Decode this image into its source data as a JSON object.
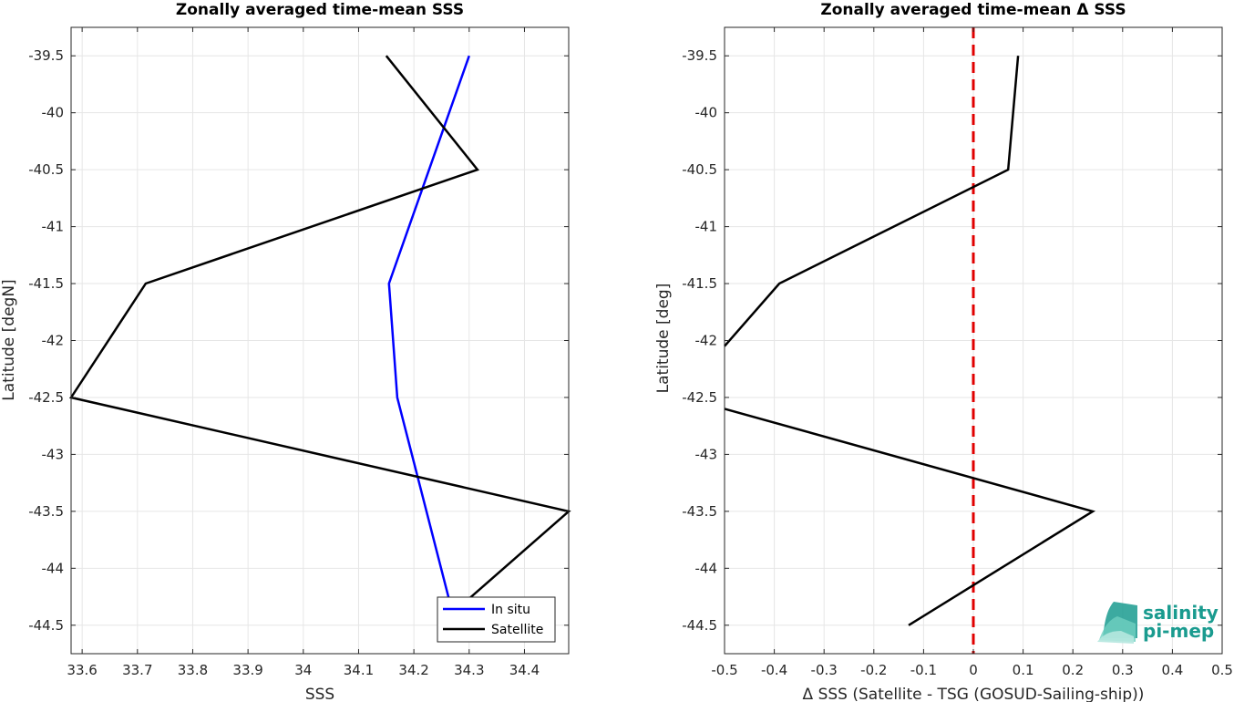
{
  "chart_data": [
    {
      "type": "line",
      "title": "Zonally averaged time-mean SSS",
      "xlabel": "SSS",
      "ylabel": "Latitude [degN]",
      "xlim": [
        33.58,
        34.48
      ],
      "ylim": [
        -44.75,
        -39.25
      ],
      "xticks": [
        "33.6",
        "33.7",
        "33.8",
        "33.9",
        "34",
        "34.1",
        "34.2",
        "34.3",
        "34.4"
      ],
      "xtick_values": [
        33.6,
        33.7,
        33.8,
        33.9,
        34.0,
        34.1,
        34.2,
        34.3,
        34.4
      ],
      "yticks": [
        "-39.5",
        "-40",
        "-40.5",
        "-41",
        "-41.5",
        "-42",
        "-42.5",
        "-43",
        "-43.5",
        "-44",
        "-44.5"
      ],
      "ytick_values": [
        -39.5,
        -40,
        -40.5,
        -41,
        -41.5,
        -42,
        -42.5,
        -43,
        -43.5,
        -44,
        -44.5
      ],
      "grid": true,
      "legend_position": "bottom-right",
      "series": [
        {
          "name": "In situ",
          "color": "#0000ff",
          "points": [
            [
              34.3,
              -39.5
            ],
            [
              34.155,
              -41.5
            ],
            [
              34.17,
              -42.5
            ],
            [
              34.265,
              -44.3
            ]
          ]
        },
        {
          "name": "Satellite",
          "color": "#000000",
          "points": [
            [
              34.15,
              -39.5
            ],
            [
              34.315,
              -40.5
            ],
            [
              33.715,
              -41.5
            ],
            [
              33.58,
              -42.5
            ],
            [
              34.48,
              -43.5
            ],
            [
              34.245,
              -44.5
            ]
          ]
        }
      ]
    },
    {
      "type": "line",
      "title": "Zonally averaged time-mean Δ SSS",
      "xlabel": "Δ SSS (Satellite - TSG (GOSUD-Sailing-ship))",
      "ylabel": "Latitude [deg]",
      "xlim": [
        -0.5,
        0.5
      ],
      "ylim": [
        -44.75,
        -39.25
      ],
      "xticks": [
        "-0.5",
        "-0.4",
        "-0.3",
        "-0.2",
        "-0.1",
        "0",
        "0.1",
        "0.2",
        "0.3",
        "0.4",
        "0.5"
      ],
      "xtick_values": [
        -0.5,
        -0.4,
        -0.3,
        -0.2,
        -0.1,
        0,
        0.1,
        0.2,
        0.3,
        0.4,
        0.5
      ],
      "yticks": [
        "-39.5",
        "-40",
        "-40.5",
        "-41",
        "-41.5",
        "-42",
        "-42.5",
        "-43",
        "-43.5",
        "-44",
        "-44.5"
      ],
      "ytick_values": [
        -39.5,
        -40,
        -40.5,
        -41,
        -41.5,
        -42,
        -42.5,
        -43,
        -43.5,
        -44,
        -44.5
      ],
      "grid": true,
      "zero_line": {
        "x": 0,
        "color": "#e00000",
        "style": "dashed"
      },
      "series": [
        {
          "color": "#000000",
          "points": [
            [
              0.09,
              -39.5
            ],
            [
              0.07,
              -40.5
            ],
            [
              -0.39,
              -41.5
            ],
            [
              -0.5,
              -42.05
            ]
          ]
        },
        {
          "color": "#000000",
          "points": [
            [
              -0.5,
              -42.6
            ],
            [
              0.24,
              -43.5
            ],
            [
              -0.13,
              -44.5
            ]
          ]
        }
      ]
    }
  ],
  "logo": {
    "line1": "salinity",
    "line2": "pi-mep",
    "color": "#1a9b8f"
  }
}
